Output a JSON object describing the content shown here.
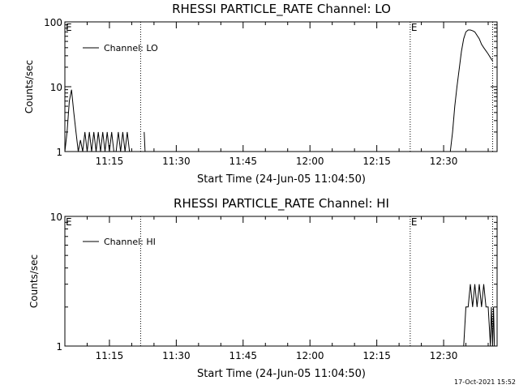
{
  "timestamp": "17-Oct-2021 15:52",
  "chart_data": [
    {
      "type": "line",
      "title": "RHESSI PARTICLE_RATE Channel: LO",
      "xlabel": "Start Time (24-Jun-05 11:04:50)",
      "ylabel": "Counts/sec",
      "y_scale": "log",
      "ylim": [
        1,
        100
      ],
      "xlim": [
        "11:05",
        "12:42"
      ],
      "x_ticks": [
        "11:15",
        "11:30",
        "11:45",
        "12:00",
        "12:15",
        "12:30"
      ],
      "y_ticks": [
        "1",
        "10",
        "100"
      ],
      "legend": {
        "label": "Channel: LO",
        "placement": "top-left"
      },
      "markers": [
        {
          "label": "E",
          "x": "11:05"
        },
        {
          "label": "E",
          "x": "12:22.5"
        }
      ],
      "vlines": [
        "11:22",
        "12:22.5",
        "12:41"
      ],
      "grid": false,
      "series": [
        {
          "name": "Channel: LO",
          "segments": [
            {
              "x": [
                "11:05",
                "11:05.5",
                "11:06",
                "11:06.5",
                "11:07",
                "11:07.5",
                "11:08",
                "11:08.5",
                "11:09",
                "11:09.5",
                "11:10",
                "11:10.5",
                "11:11",
                "11:11.5",
                "11:12",
                "11:12.5",
                "11:13",
                "11:13.5",
                "11:14",
                "11:14.5",
                "11:15",
                "11:15.5",
                "11:16",
                "11:16.5",
                "11:17",
                "11:17.5",
                "11:18",
                "11:18.5",
                "11:19",
                "11:19.5",
                "11:20"
              ],
              "y": [
                1,
                2,
                6,
                9,
                4,
                2,
                1,
                1.5,
                1,
                2,
                1,
                2,
                1,
                2,
                1,
                2,
                1,
                2,
                1,
                2,
                1,
                2,
                1,
                1,
                2,
                1,
                2,
                1,
                2,
                1,
                1
              ]
            },
            {
              "x": [
                "11:22.8",
                "11:23",
                "11:23.2"
              ],
              "y": [
                2,
                1,
                1
              ]
            },
            {
              "x": [
                "12:31.5",
                "12:32",
                "12:32.5",
                "12:33",
                "12:34",
                "12:34.5",
                "12:35",
                "12:35.5",
                "12:36",
                "12:36.5",
                "12:37",
                "12:38",
                "12:38.5",
                "12:39",
                "12:40",
                "12:40.5",
                "12:41"
              ],
              "y": [
                1,
                2,
                5,
                10,
                35,
                55,
                70,
                75,
                75,
                73,
                70,
                55,
                45,
                40,
                32,
                28,
                25
              ]
            }
          ]
        }
      ]
    },
    {
      "type": "line",
      "title": "RHESSI PARTICLE_RATE Channel: HI",
      "xlabel": "Start Time (24-Jun-05 11:04:50)",
      "ylabel": "Counts/sec",
      "y_scale": "log",
      "ylim": [
        1,
        10
      ],
      "xlim": [
        "11:05",
        "12:42"
      ],
      "x_ticks": [
        "11:15",
        "11:30",
        "11:45",
        "12:00",
        "12:15",
        "12:30"
      ],
      "y_ticks": [
        "1",
        "10"
      ],
      "legend": {
        "label": "Channel: HI",
        "placement": "top-left"
      },
      "markers": [
        {
          "label": "E",
          "x": "11:05"
        },
        {
          "label": "E",
          "x": "12:22.5"
        }
      ],
      "vlines": [
        "11:22",
        "12:22.5",
        "12:41"
      ],
      "grid": false,
      "series": [
        {
          "name": "Channel: HI",
          "segments": [
            {
              "x": [
                "12:34.5",
                "12:35",
                "12:35.5",
                "12:36",
                "12:36.5",
                "12:37",
                "12:37.5",
                "12:38",
                "12:38.5",
                "12:39",
                "12:39.5",
                "12:40",
                "12:40.5",
                "12:40.7",
                "12:41",
                "12:41.2",
                "12:41.4"
              ],
              "y": [
                1,
                2,
                2,
                3,
                2,
                3,
                2,
                3,
                2,
                3,
                2,
                2,
                1,
                2,
                1,
                2,
                1
              ]
            }
          ]
        }
      ]
    }
  ]
}
